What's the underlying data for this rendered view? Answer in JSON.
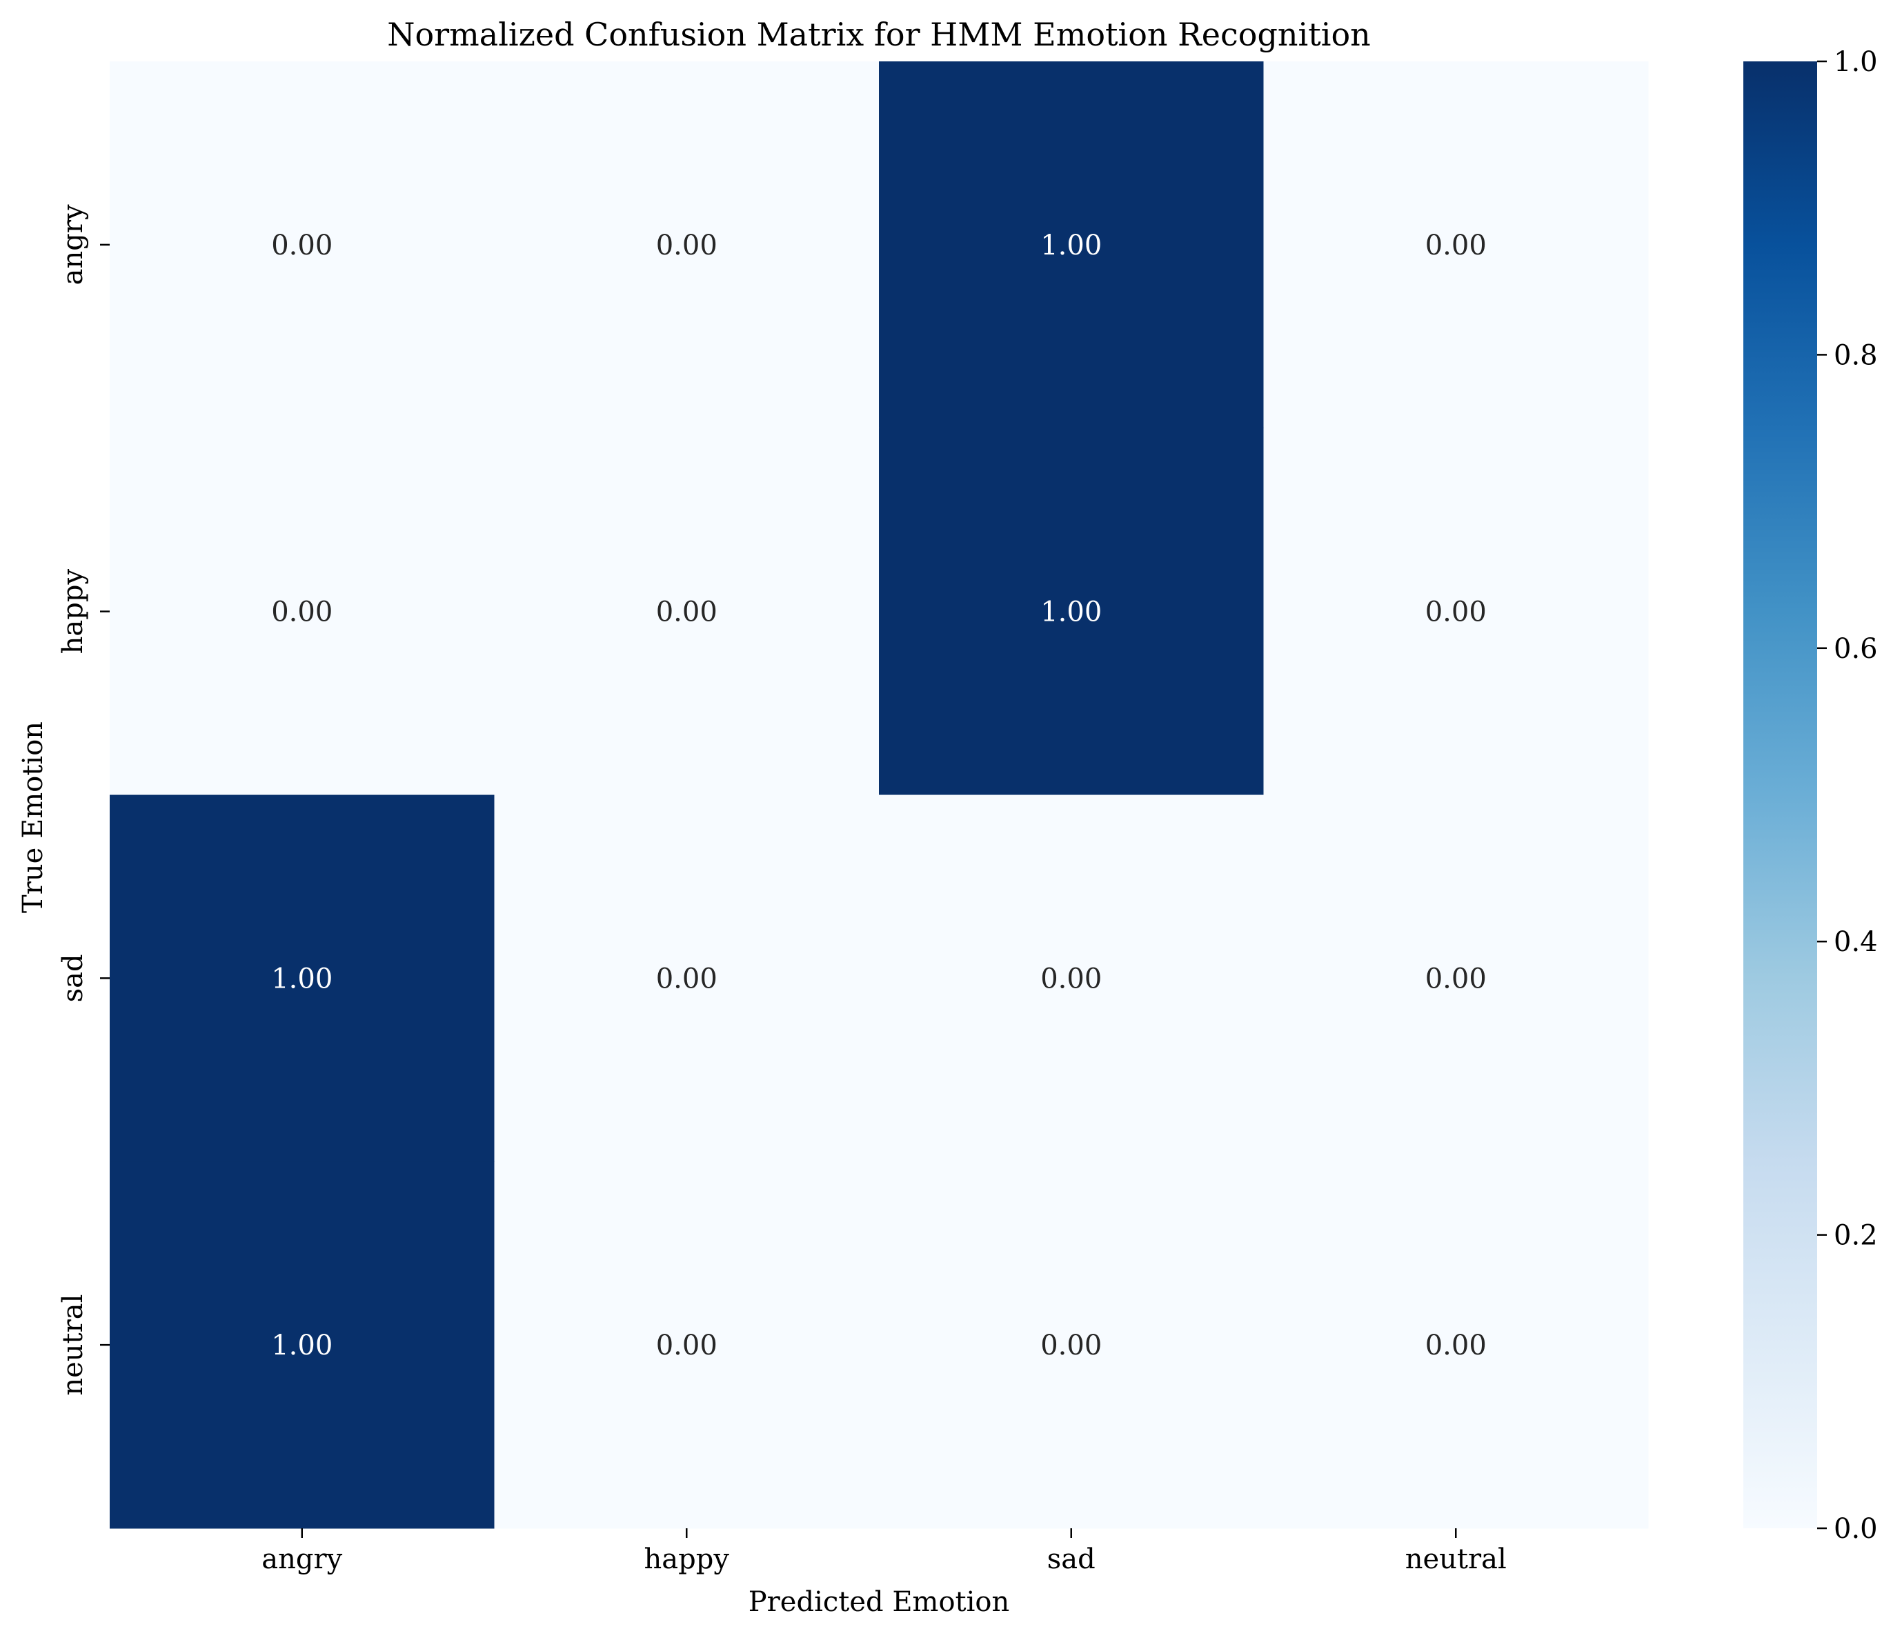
{
  "chart_data": {
    "type": "heatmap",
    "title": "Normalized Confusion Matrix for HMM Emotion Recognition",
    "xlabel": "Predicted Emotion",
    "ylabel": "True Emotion",
    "x_categories": [
      "angry",
      "happy",
      "sad",
      "neutral"
    ],
    "y_categories": [
      "angry",
      "happy",
      "sad",
      "neutral"
    ],
    "values": [
      [
        0.0,
        0.0,
        1.0,
        0.0
      ],
      [
        0.0,
        0.0,
        1.0,
        0.0
      ],
      [
        1.0,
        0.0,
        0.0,
        0.0
      ],
      [
        1.0,
        0.0,
        0.0,
        0.0
      ]
    ],
    "annotations": [
      [
        "0.00",
        "0.00",
        "1.00",
        "0.00"
      ],
      [
        "0.00",
        "0.00",
        "1.00",
        "0.00"
      ],
      [
        "1.00",
        "0.00",
        "0.00",
        "0.00"
      ],
      [
        "1.00",
        "0.00",
        "0.00",
        "0.00"
      ]
    ],
    "colormap": "Blues",
    "color_low": "#f7fbff",
    "color_high": "#08306b",
    "colorbar": {
      "range": [
        0.0,
        1.0
      ],
      "ticks": [
        "0.0",
        "0.2",
        "0.4",
        "0.6",
        "0.8",
        "1.0"
      ]
    },
    "annotation_text_color_dark": "#262626",
    "annotation_text_color_light": "#ffffff"
  }
}
